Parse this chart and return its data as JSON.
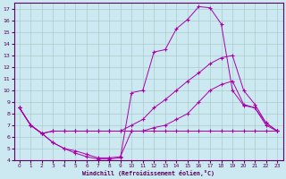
{
  "xlabel": "Windchill (Refroidissement éolien,°C)",
  "xlim": [
    -0.5,
    23.5
  ],
  "ylim": [
    4,
    17.5
  ],
  "xticks": [
    0,
    1,
    2,
    3,
    4,
    5,
    6,
    7,
    8,
    9,
    10,
    11,
    12,
    13,
    14,
    15,
    16,
    17,
    18,
    19,
    20,
    21,
    22,
    23
  ],
  "yticks": [
    4,
    5,
    6,
    7,
    8,
    9,
    10,
    11,
    12,
    13,
    14,
    15,
    16,
    17
  ],
  "bg_color": "#cce8f0",
  "line_color": "#aa00aa",
  "grid_color": "#aacccc",
  "curves": [
    {
      "x": [
        0,
        1,
        2,
        3,
        4,
        5,
        6,
        7,
        8,
        9,
        10,
        11,
        12,
        13,
        14,
        15,
        16,
        17,
        18,
        19,
        20,
        21,
        22,
        23
      ],
      "y": [
        8.5,
        7.0,
        6.3,
        5.5,
        5.0,
        4.6,
        4.3,
        4.1,
        4.1,
        4.2,
        9.8,
        10.0,
        13.3,
        13.5,
        15.3,
        16.1,
        17.2,
        17.1,
        15.7,
        10.0,
        8.7,
        8.5,
        7.0,
        6.5
      ]
    },
    {
      "x": [
        0,
        1,
        2,
        3,
        4,
        5,
        6,
        7,
        8,
        9,
        10,
        11,
        12,
        13,
        14,
        15,
        16,
        17,
        18,
        19,
        20,
        21,
        22,
        23
      ],
      "y": [
        8.5,
        7.0,
        6.3,
        6.5,
        6.5,
        6.5,
        6.5,
        6.5,
        6.5,
        6.5,
        7.0,
        7.5,
        8.5,
        9.2,
        10.0,
        10.8,
        11.5,
        12.3,
        12.8,
        13.0,
        10.0,
        8.8,
        7.2,
        6.5
      ]
    },
    {
      "x": [
        0,
        1,
        2,
        3,
        4,
        5,
        6,
        7,
        8,
        9,
        10,
        11,
        12,
        13,
        14,
        15,
        16,
        17,
        18,
        19,
        20,
        21,
        22,
        23
      ],
      "y": [
        8.5,
        7.0,
        6.3,
        6.5,
        6.5,
        6.5,
        6.5,
        6.5,
        6.5,
        6.5,
        6.5,
        6.5,
        6.5,
        6.5,
        6.5,
        6.5,
        6.5,
        6.5,
        6.5,
        6.5,
        6.5,
        6.5,
        6.5,
        6.5
      ]
    },
    {
      "x": [
        0,
        1,
        2,
        3,
        4,
        5,
        6,
        7,
        8,
        9,
        10,
        11,
        12,
        13,
        14,
        15,
        16,
        17,
        18,
        19,
        20,
        21,
        22,
        23
      ],
      "y": [
        8.5,
        7.0,
        6.3,
        5.5,
        5.0,
        4.8,
        4.5,
        4.2,
        4.2,
        4.3,
        6.5,
        6.5,
        6.8,
        7.0,
        7.5,
        8.0,
        9.0,
        10.0,
        10.5,
        10.8,
        8.8,
        8.5,
        7.2,
        6.5
      ]
    }
  ]
}
